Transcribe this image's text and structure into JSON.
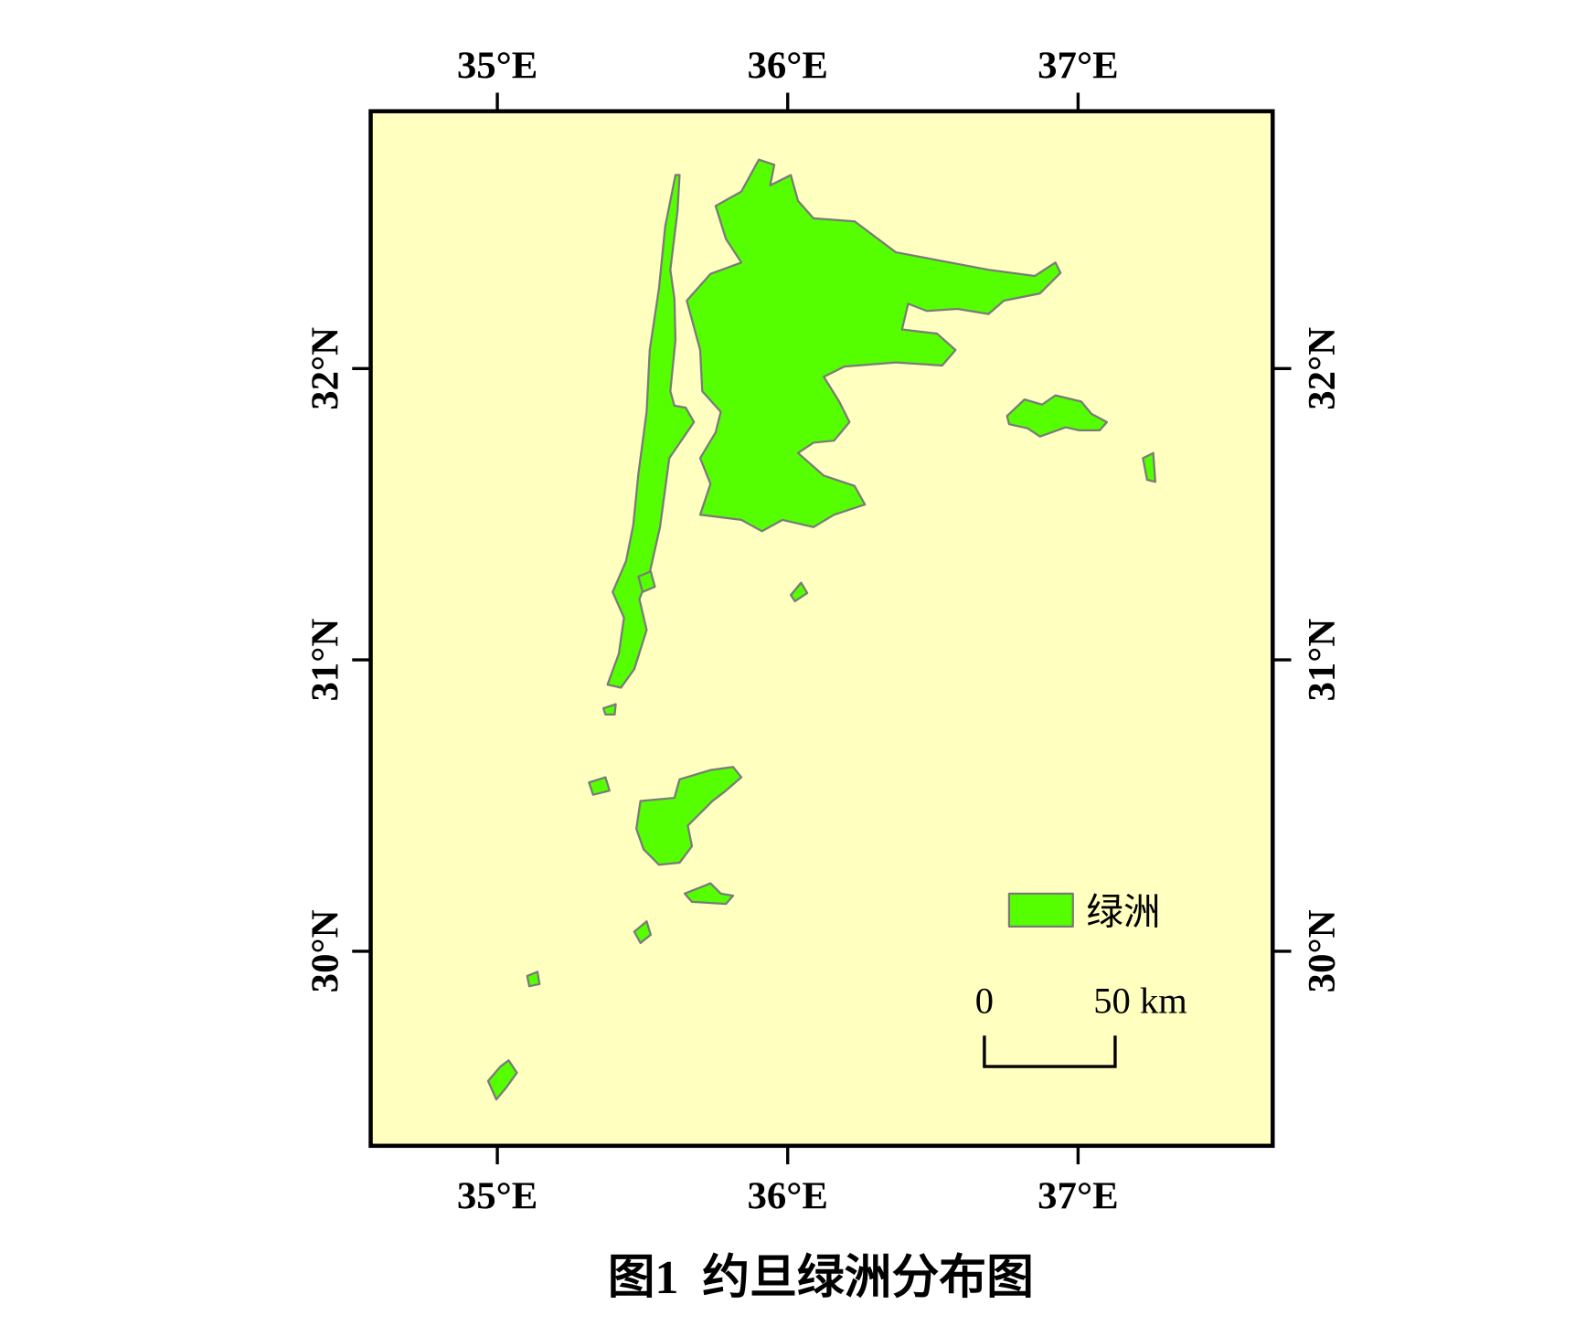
{
  "map": {
    "lon_labels": [
      "35°E",
      "36°E",
      "37°E"
    ],
    "lat_labels": [
      "32°N",
      "31°N",
      "30°N"
    ],
    "legend": {
      "label": "绿洲"
    },
    "scale_bar": {
      "start": "0",
      "end": "50 km"
    }
  },
  "caption": "图1  约旦绿洲分布图"
}
